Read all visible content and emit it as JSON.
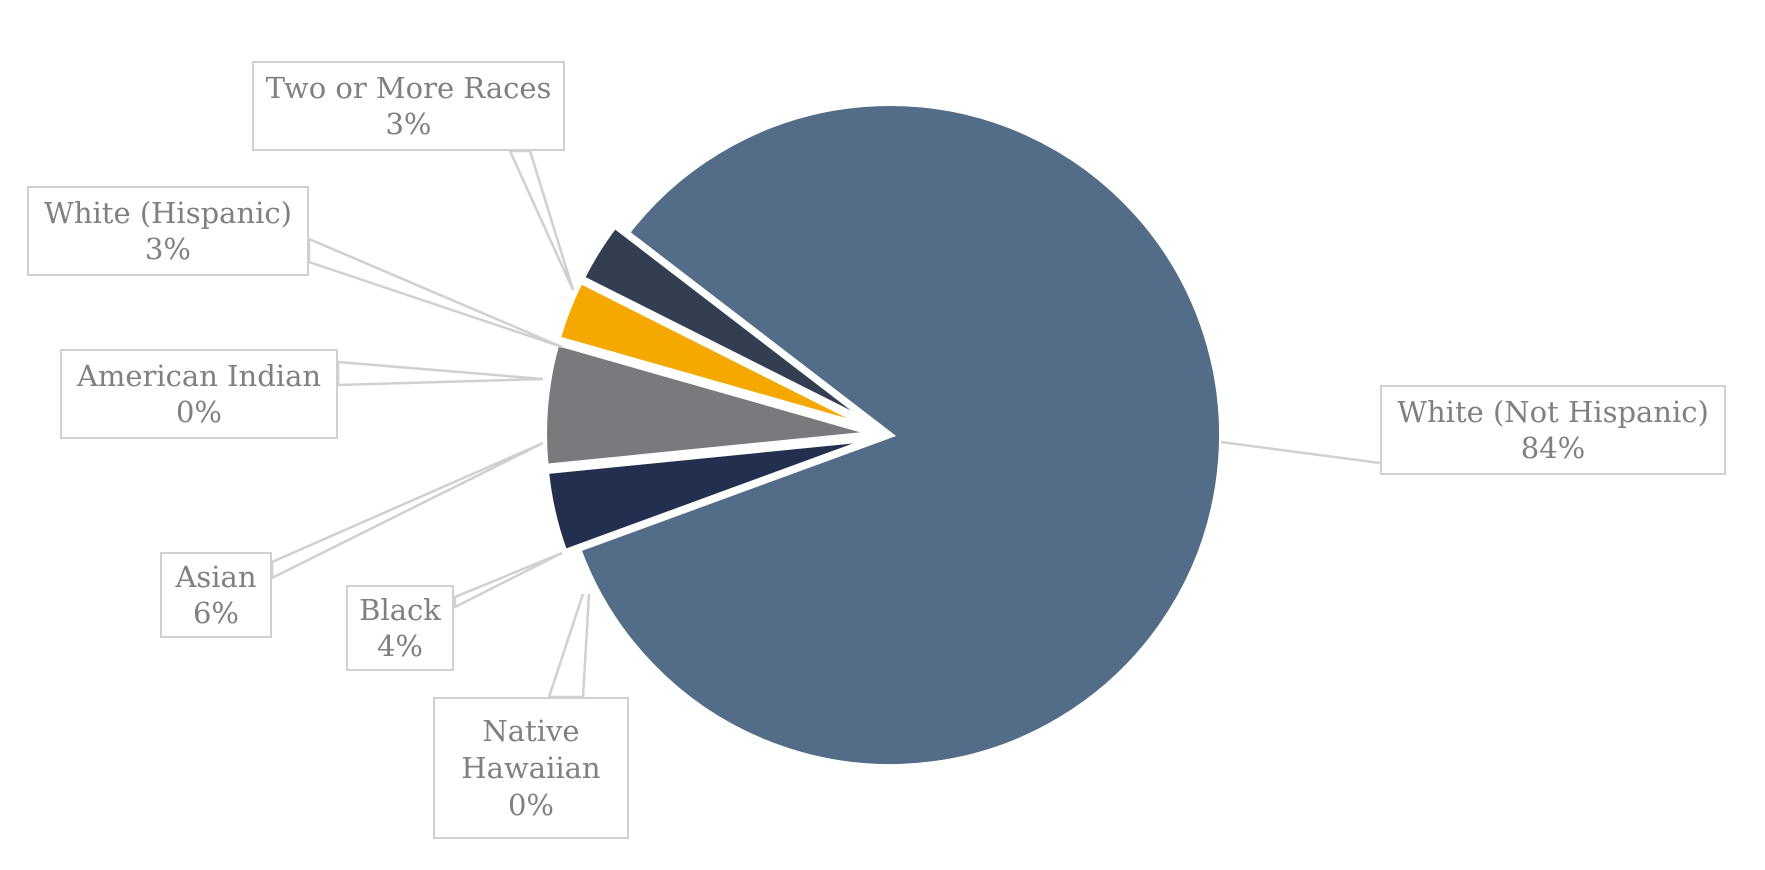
{
  "chart_data": {
    "type": "pie",
    "title": "",
    "slices": [
      {
        "label": "White (Not Hispanic)",
        "percent_label": "84%",
        "value": 84,
        "color": "#536c87"
      },
      {
        "label": "Native Hawaiian",
        "percent_label": "0%",
        "value": 0,
        "color": "#536c87"
      },
      {
        "label": "Black",
        "percent_label": "4%",
        "value": 4,
        "color": "#232f4e"
      },
      {
        "label": "Asian",
        "percent_label": "6%",
        "value": 6,
        "color": "#7a7a7e"
      },
      {
        "label": "American Indian",
        "percent_label": "0%",
        "value": 0,
        "color": "#7a7a7e"
      },
      {
        "label": "White (Hispanic)",
        "percent_label": "3%",
        "value": 3,
        "color": "#f5a800"
      },
      {
        "label": "Two or More Races",
        "percent_label": "3%",
        "value": 3,
        "color": "#333f51"
      }
    ]
  }
}
